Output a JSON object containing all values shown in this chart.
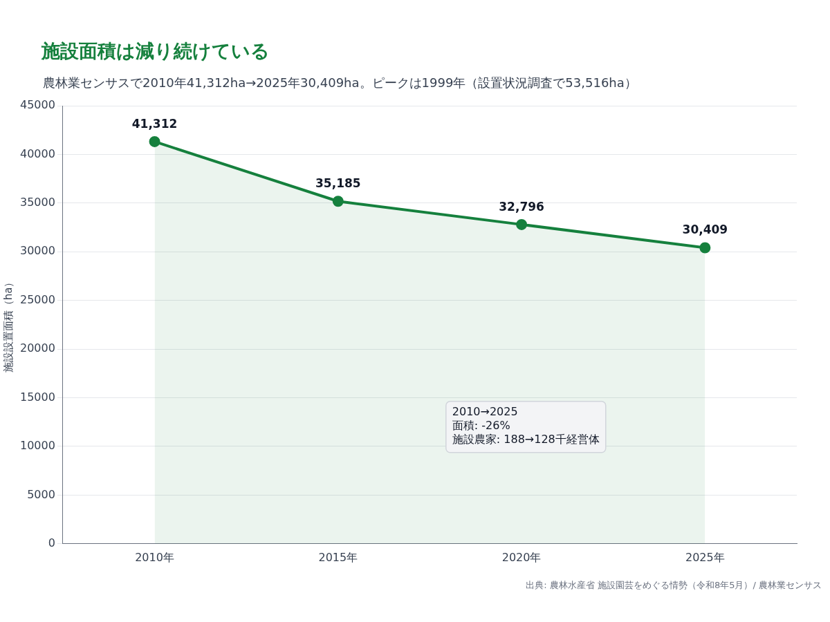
{
  "chart_data": {
    "type": "area",
    "title": "施設面積は減り続けている",
    "subtitle": "農林業センサスで2010年41,312ha→2025年30,409ha。ピークは1999年（設置状況調査で53,516ha）",
    "ylabel": "施設設置面積（ha）",
    "categories": [
      "2010年",
      "2015年",
      "2020年",
      "2025年"
    ],
    "series": [
      {
        "color": "#15803d",
        "values": [
          41312,
          35185,
          32796,
          30409
        ],
        "value_labels": [
          "41,312",
          "35,185",
          "32,796",
          "30,409"
        ]
      }
    ],
    "ylim": [
      0,
      45000
    ],
    "yticks": [
      0,
      5000,
      10000,
      15000,
      20000,
      25000,
      30000,
      35000,
      40000,
      45000
    ],
    "grid": "y",
    "legend": false,
    "marker": "circle",
    "line_style": "solid",
    "annotations": [
      "2010→2025\n面積: -26%\n施設農家: 188→128千経営体",
      "出典: 農林水産省 施設園芸をめぐる情勢（令和8年5月）/ 農林業センサス"
    ]
  }
}
